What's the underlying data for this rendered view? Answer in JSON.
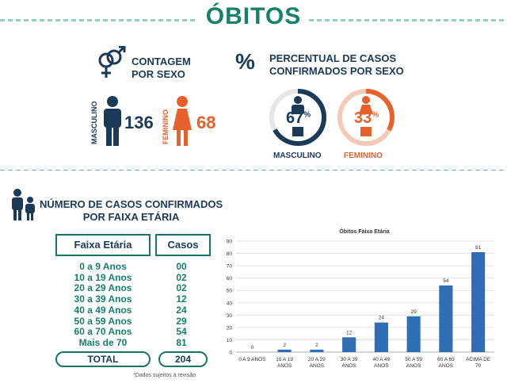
{
  "title": "ÓBITOS",
  "sex_count": {
    "heading_line1": "CONTAGEM",
    "heading_line2": "POR SEXO",
    "male_label": "MASCULINO",
    "male_value": "136",
    "female_label": "FEMININO",
    "female_value": "68"
  },
  "sex_percent": {
    "symbol": "%",
    "heading_line1": "PERCENTUAL DE CASOS",
    "heading_line2": "CONFIRMADOS POR SEXO",
    "male_pct": "67",
    "male_fraction": 0.67,
    "female_pct": "33",
    "female_fraction": 0.33,
    "pct_sign": "%",
    "male_label": "MASCULINO",
    "female_label": "FEMININO"
  },
  "age_section": {
    "heading_line1": "NÚMERO DE CASOS CONFIRMADOS",
    "heading_line2": "POR FAIXA ETÁRIA"
  },
  "table": {
    "col_range": "Faixa Etária",
    "col_cases": "Casos",
    "rows": [
      {
        "range": "0 a 9 Anos",
        "cases": "00"
      },
      {
        "range": "10 a 19 Anos",
        "cases": "02"
      },
      {
        "range": "20 a 29 Anos",
        "cases": "02"
      },
      {
        "range": "30 a 39 Anos",
        "cases": "12"
      },
      {
        "range": "40 a 49 Anos",
        "cases": "24"
      },
      {
        "range": "50 a 59 Anos",
        "cases": "29"
      },
      {
        "range": "60 a 70 Anos",
        "cases": "54"
      },
      {
        "range": "Mais de 70",
        "cases": "81"
      }
    ],
    "total_label": "TOTAL",
    "total_value": "204",
    "footnote": "*Dados sujeitos à revisão"
  },
  "colors": {
    "male": "#1b3a57",
    "female": "#e8612c",
    "teal": "#17806b",
    "bar": "#2f6db5"
  },
  "chart_data": {
    "type": "bar",
    "title": "Óbitos Faixa Etária",
    "categories": [
      [
        "0 A 9 ANOS"
      ],
      [
        "10 A 19",
        "ANOS"
      ],
      [
        "20 A 29",
        "ANOS"
      ],
      [
        "30 A 39",
        "ANOS"
      ],
      [
        "40 A 49",
        "ANOS"
      ],
      [
        "50 A 59",
        "ANOS"
      ],
      [
        "60 A 69",
        "ANOS"
      ],
      [
        "ACIMA DE",
        "70"
      ]
    ],
    "values": [
      0,
      2,
      2,
      12,
      24,
      29,
      54,
      81
    ],
    "ylim": [
      0,
      90
    ],
    "yticks": [
      0,
      10,
      20,
      30,
      40,
      50,
      60,
      70,
      80,
      90
    ],
    "grid": true
  }
}
